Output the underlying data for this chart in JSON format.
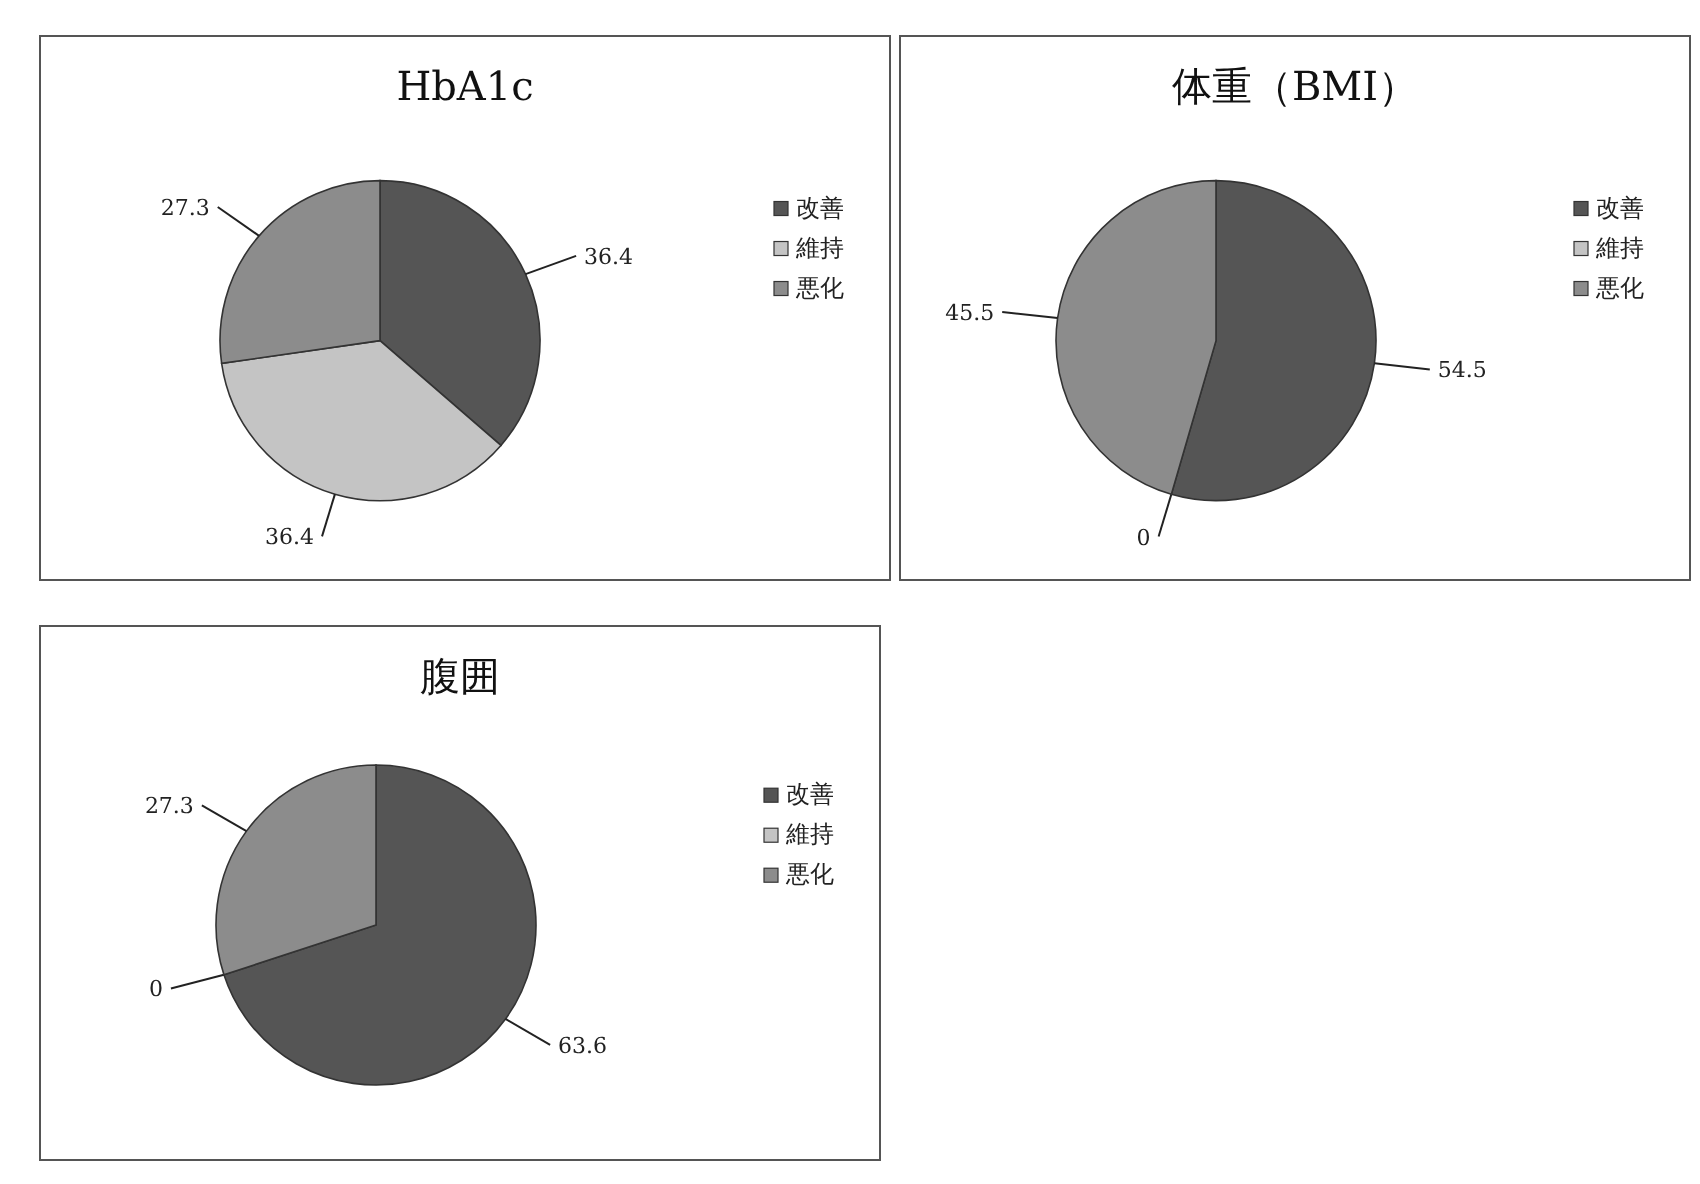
{
  "chart_data": [
    {
      "type": "pie",
      "title": "HbA1c",
      "categories": [
        "改善",
        "維持",
        "悪化"
      ],
      "values": [
        36.4,
        36.4,
        27.3
      ],
      "colors": [
        "#555555",
        "#c4c4c4",
        "#8c8c8c"
      ],
      "value_labels": [
        "36.4",
        "36.4",
        "27.3"
      ],
      "legend": "right"
    },
    {
      "type": "pie",
      "title": "体重（BMI）",
      "categories": [
        "改善",
        "維持",
        "悪化"
      ],
      "values": [
        54.5,
        0,
        45.5
      ],
      "colors": [
        "#555555",
        "#c4c4c4",
        "#8c8c8c"
      ],
      "value_labels": [
        "54.5",
        "0",
        "45.5"
      ],
      "legend": "right"
    },
    {
      "type": "pie",
      "title": "腹囲",
      "categories": [
        "改善",
        "維持",
        "悪化"
      ],
      "values": [
        63.6,
        0,
        27.3
      ],
      "colors": [
        "#555555",
        "#c4c4c4",
        "#8c8c8c"
      ],
      "value_labels": [
        "63.6",
        "0",
        "27.3"
      ],
      "legend": "right"
    }
  ]
}
